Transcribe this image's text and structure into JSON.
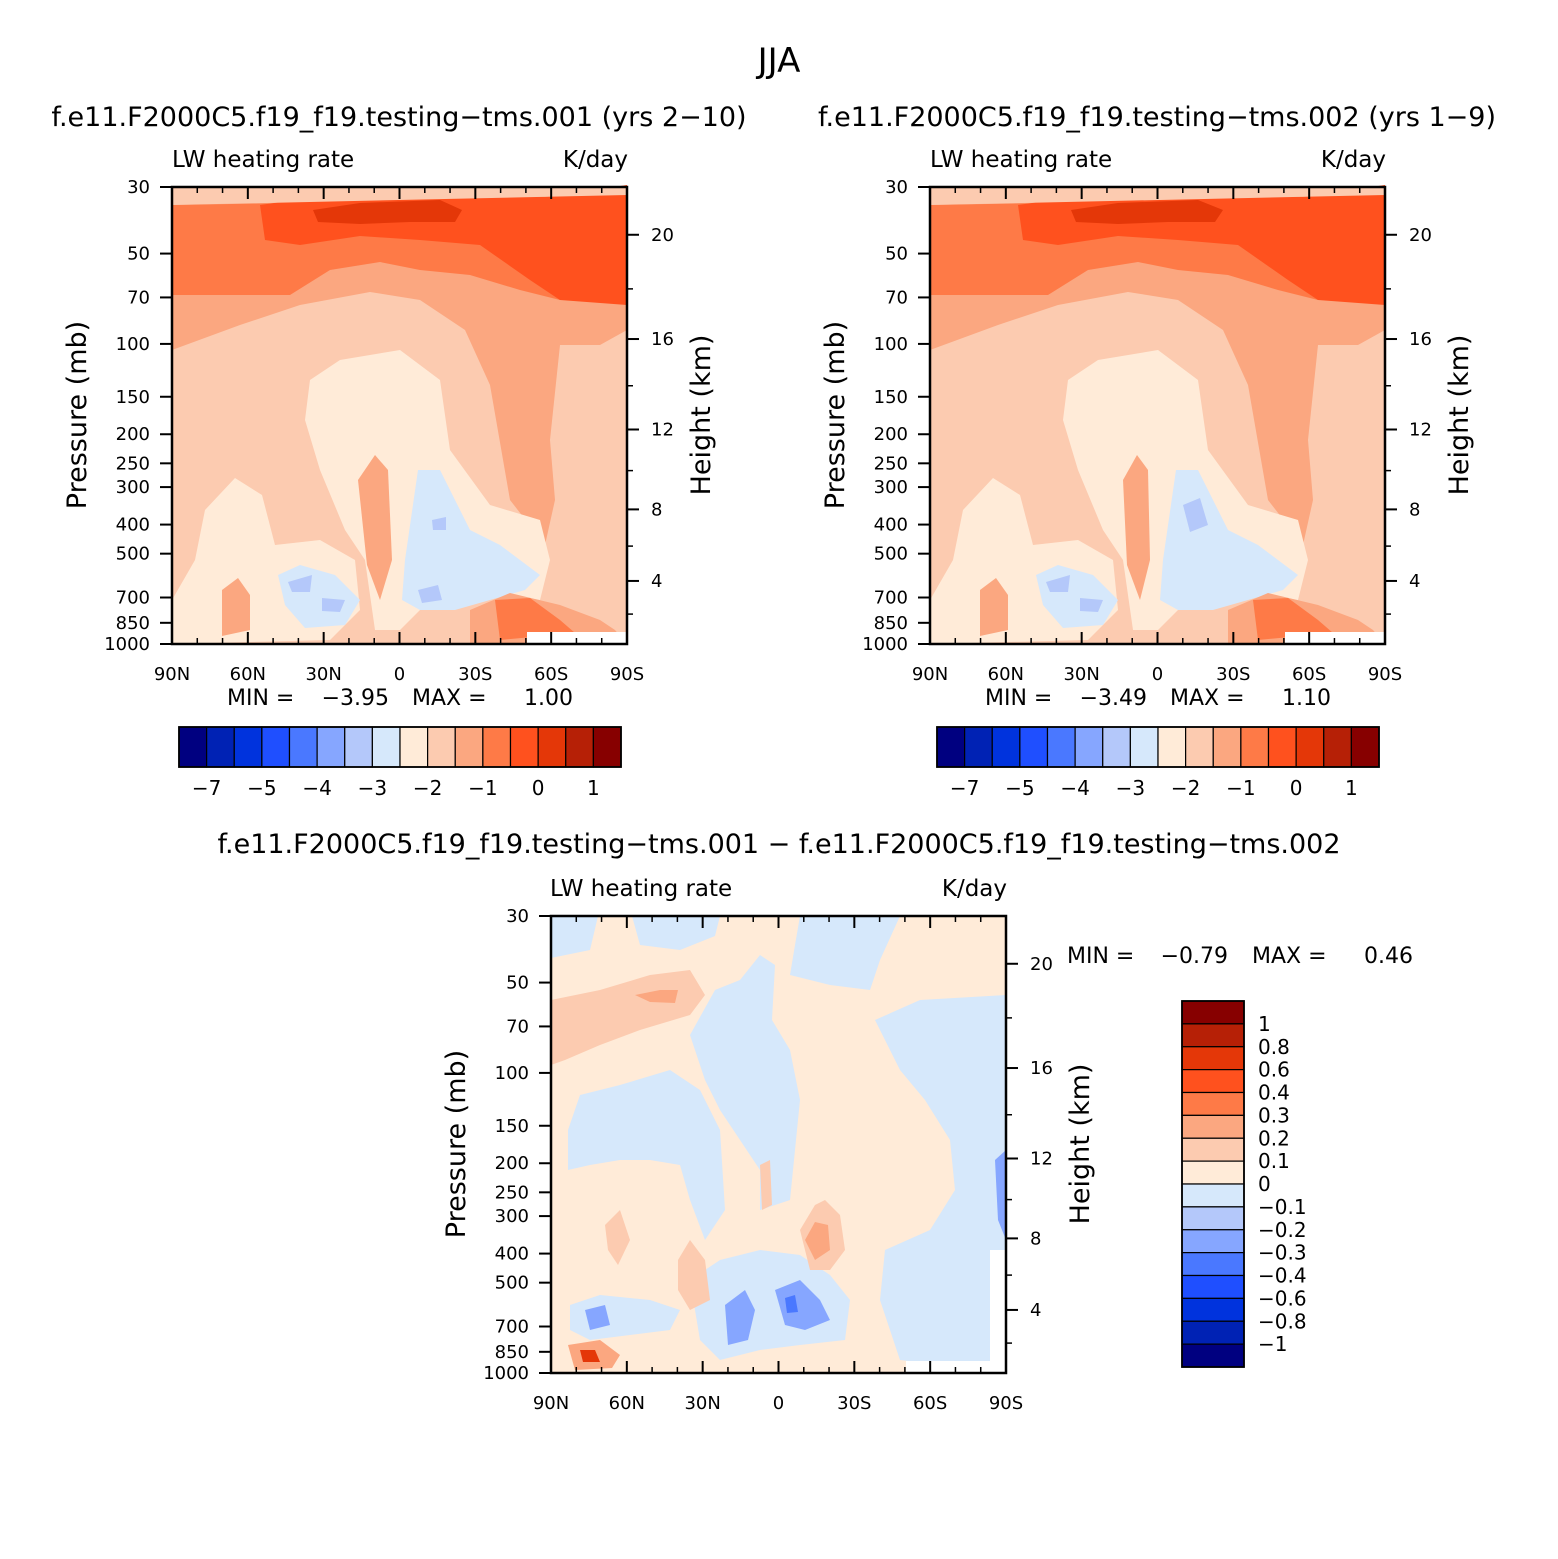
{
  "page_title": "JJA",
  "chart_data": [
    {
      "type": "heatmap",
      "title": "f.e11.F2000C5.f19_f19.testing-tms.001 (yrs 2-10)",
      "left_label": "LW heating rate",
      "right_label": "K/day",
      "ylabel": "Pressure (mb)",
      "ylabel_right": "Height (km)",
      "x_ticks": [
        "90N",
        "60N",
        "30N",
        "0",
        "30S",
        "60S",
        "90S"
      ],
      "y_ticks": [
        "30",
        "50",
        "70",
        "100",
        "150",
        "200",
        "250",
        "300",
        "400",
        "500",
        "700",
        "850",
        "1000"
      ],
      "height_ticks": [
        "20",
        "16",
        "12",
        "8",
        "4"
      ],
      "min_label": "MIN =",
      "min_value": "-3.95",
      "max_label": "MAX =",
      "max_value": "1.00",
      "colorbar_labels": [
        "-7",
        "-5",
        "-4",
        "-3",
        "-2",
        "-1",
        "0",
        "1"
      ]
    },
    {
      "type": "heatmap",
      "title": "f.e11.F2000C5.f19_f19.testing-tms.002 (yrs 1-9)",
      "left_label": "LW heating rate",
      "right_label": "K/day",
      "ylabel": "Pressure (mb)",
      "ylabel_right": "Height (km)",
      "x_ticks": [
        "90N",
        "60N",
        "30N",
        "0",
        "30S",
        "60S",
        "90S"
      ],
      "y_ticks": [
        "30",
        "50",
        "70",
        "100",
        "150",
        "200",
        "250",
        "300",
        "400",
        "500",
        "700",
        "850",
        "1000"
      ],
      "height_ticks": [
        "20",
        "16",
        "12",
        "8",
        "4"
      ],
      "min_label": "MIN =",
      "min_value": "-3.49",
      "max_label": "MAX =",
      "max_value": "1.10",
      "colorbar_labels": [
        "-7",
        "-5",
        "-4",
        "-3",
        "-2",
        "-1",
        "0",
        "1"
      ]
    },
    {
      "type": "heatmap",
      "title": "f.e11.F2000C5.f19_f19.testing-tms.001 - f.e11.F2000C5.f19_f19.testing-tms.002",
      "left_label": "LW heating rate",
      "right_label": "K/day",
      "ylabel": "Pressure (mb)",
      "ylabel_right": "Height (km)",
      "x_ticks": [
        "90N",
        "60N",
        "30N",
        "0",
        "30S",
        "60S",
        "90S"
      ],
      "y_ticks": [
        "30",
        "50",
        "70",
        "100",
        "150",
        "200",
        "250",
        "300",
        "400",
        "500",
        "700",
        "850",
        "1000"
      ],
      "height_ticks": [
        "20",
        "16",
        "12",
        "8",
        "4"
      ],
      "min_label": "MIN =",
      "min_value": "-0.79",
      "max_label": "MAX =",
      "max_value": "0.46",
      "colorbar_labels": [
        "1",
        "0.8",
        "0.6",
        "0.4",
        "0.3",
        "0.2",
        "0.1",
        "0",
        "-0.1",
        "-0.2",
        "-0.3",
        "-0.4",
        "-0.6",
        "-0.8",
        "-1"
      ]
    }
  ],
  "colors": {
    "palette": [
      "#000080",
      "#0022b4",
      "#0033dd",
      "#1f4fff",
      "#4a78ff",
      "#86a6ff",
      "#b4c8fa",
      "#d6e8fb",
      "#ffebd8",
      "#fccbb0",
      "#fba780",
      "#fe7a47",
      "#ff511e",
      "#e43708",
      "#b62006",
      "#870000"
    ]
  }
}
